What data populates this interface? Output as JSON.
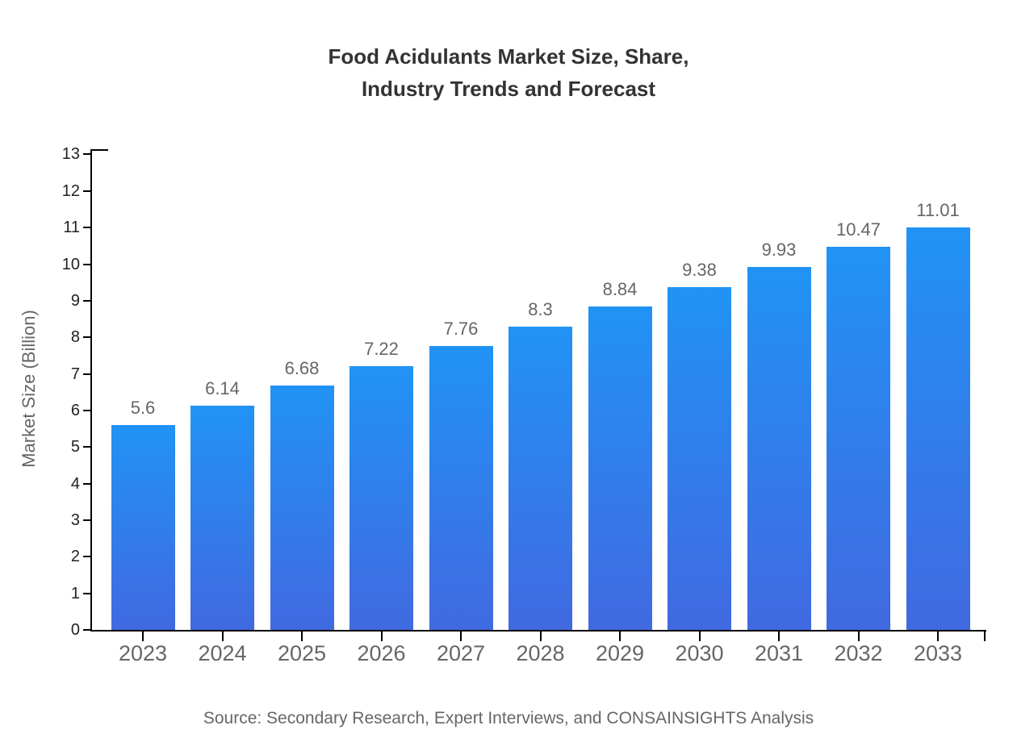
{
  "page": {
    "background": "#ffffff"
  },
  "chart_data": {
    "type": "bar",
    "title": "Food Acidulants Market Size, Share, Industry Trends and Forecast",
    "title_lines": [
      "Food Acidulants Market Size, Share,",
      "Industry Trends and Forecast"
    ],
    "categories": [
      "2023",
      "2024",
      "2025",
      "2026",
      "2027",
      "2028",
      "2029",
      "2030",
      "2031",
      "2032",
      "2033"
    ],
    "values": [
      5.6,
      6.14,
      6.68,
      7.22,
      7.76,
      8.3,
      8.84,
      9.38,
      9.93,
      10.47,
      11.01
    ],
    "value_labels": [
      "5.6",
      "6.14",
      "6.68",
      "7.22",
      "7.76",
      "8.3",
      "8.84",
      "9.38",
      "9.93",
      "10.47",
      "11.01"
    ],
    "xlabel": "",
    "ylabel": "Market Size (Billion)",
    "ylim": [
      0,
      13
    ],
    "yticks": [
      0,
      1,
      2,
      3,
      4,
      5,
      6,
      7,
      8,
      9,
      10,
      11,
      12,
      13
    ],
    "grid": false,
    "legend": "none",
    "colors": {
      "bar_top": "#2193f5",
      "bar_bottom": "#4169e0",
      "axis": "#000000",
      "title_text": "#333333",
      "ytick_text": "#222222",
      "xtick_text": "#666666",
      "value_text": "#666666",
      "source_text": "#666666"
    }
  },
  "footer": {
    "source": "Source: Secondary Research, Expert Interviews, and CONSAINSIGHTS Analysis"
  }
}
